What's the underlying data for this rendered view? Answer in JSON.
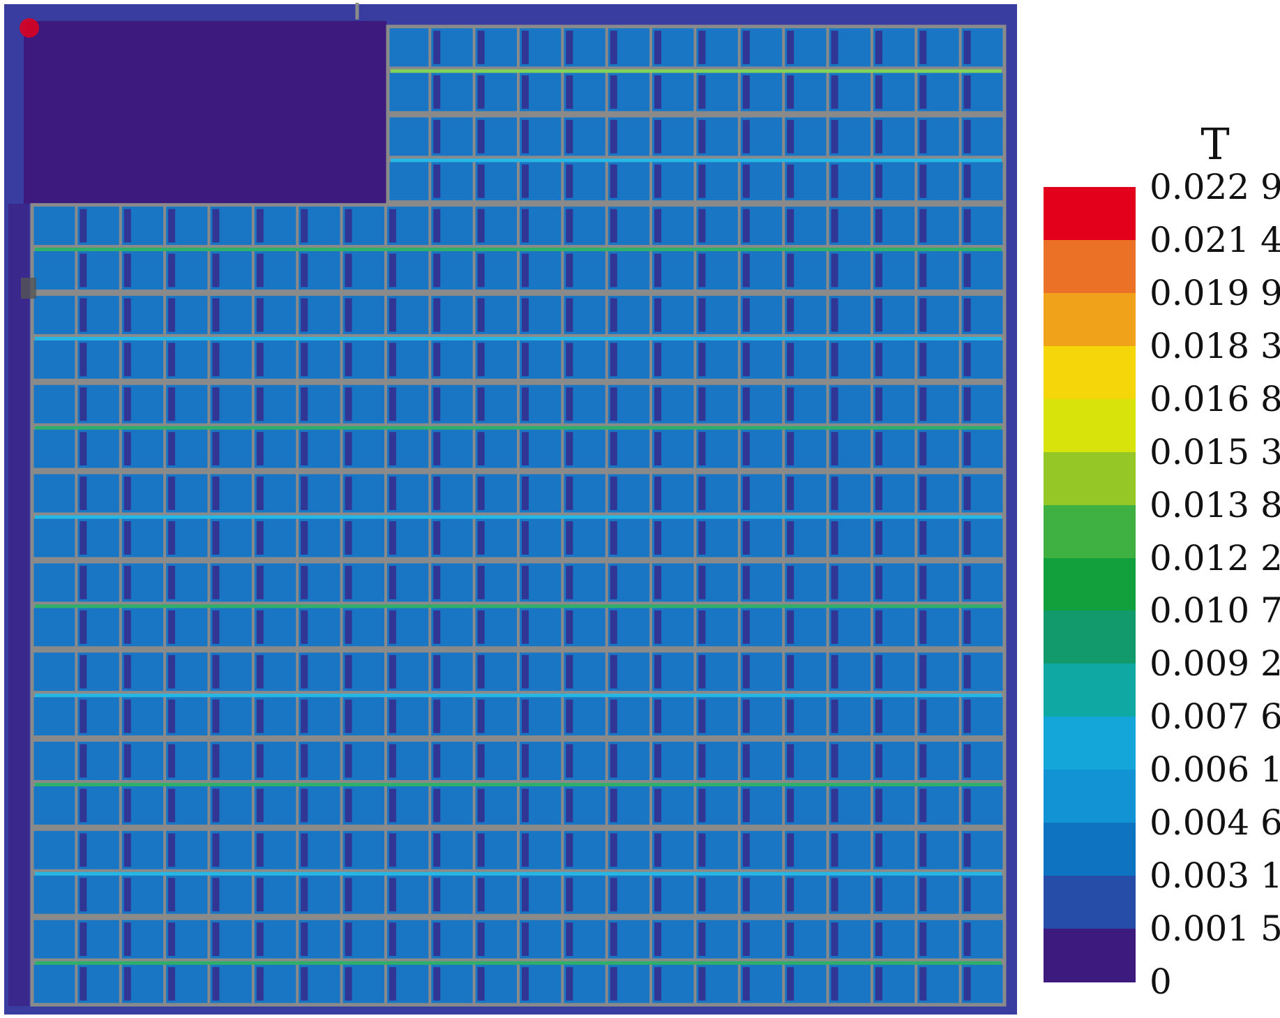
{
  "legend": {
    "title": "T",
    "labels": [
      "0.022 9",
      "0.021 4",
      "0.019 9",
      "0.018 3",
      "0.016 8",
      "0.015 3",
      "0.013 8",
      "0.012 2",
      "0.010 7",
      "0.009 2",
      "0.007 6",
      "0.006 1",
      "0.004 6",
      "0.003 1",
      "0.001 5",
      "0"
    ],
    "colors": [
      "#e2001b",
      "#ea7125",
      "#f0a21b",
      "#f5d60a",
      "#d8e30c",
      "#95c726",
      "#3fb143",
      "#11a03c",
      "#139a6c",
      "#0fa8a2",
      "#14a6d9",
      "#1193d4",
      "#0e73c0",
      "#264da7",
      "#3c1a7e"
    ]
  },
  "field": {
    "background_color": "#3a3da0",
    "cold_color": "#3c1a7e",
    "cell_color": "#1380cb",
    "frame_color": "#8a8a8a",
    "strip_colors": [
      "#2fb06a",
      "#25b7e6",
      "#7fd35a"
    ]
  }
}
